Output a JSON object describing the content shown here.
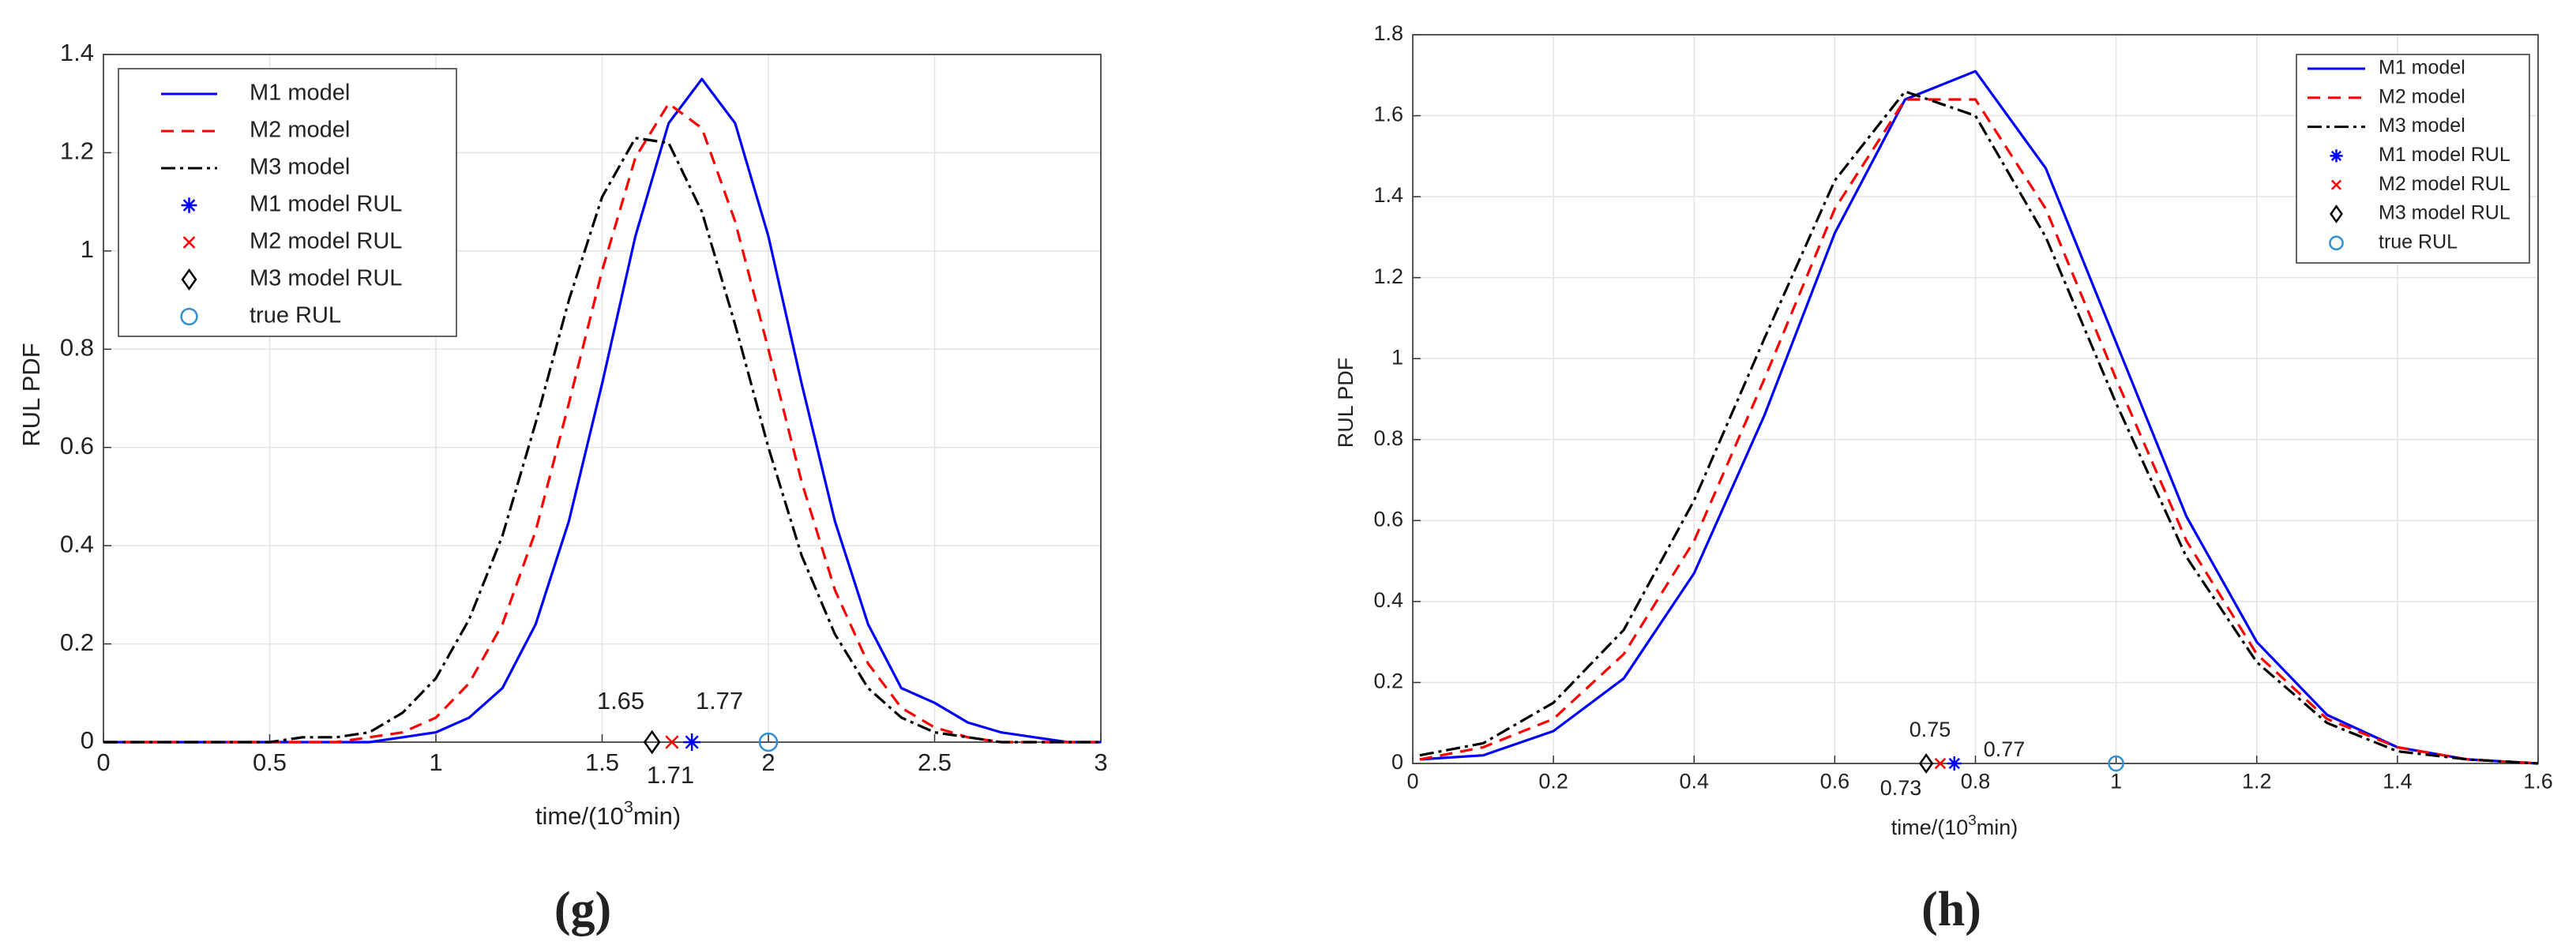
{
  "chart_data": [
    {
      "type": "line",
      "panel_label": "(g)",
      "y_label": "RUL PDF",
      "x_label_parts": [
        "time/(10",
        "3",
        "min)"
      ],
      "xlim": [
        0,
        3
      ],
      "ylim": [
        0,
        1.4
      ],
      "xticks": [
        0,
        0.5,
        1,
        1.5,
        2,
        2.5,
        3
      ],
      "yticks": [
        0,
        0.2,
        0.4,
        0.6,
        0.8,
        1,
        1.2,
        1.4
      ],
      "grid": true,
      "legend": "upper-left",
      "x": [
        0,
        0.1,
        0.2,
        0.3,
        0.4,
        0.5,
        0.6,
        0.7,
        0.8,
        0.9,
        1,
        1.1,
        1.2,
        1.3,
        1.4,
        1.5,
        1.6,
        1.7,
        1.8,
        1.9,
        2,
        2.1,
        2.2,
        2.3,
        2.4,
        2.5,
        2.6,
        2.7,
        2.8,
        2.9,
        3
      ],
      "series": [
        {
          "name": "M1 model",
          "color": "#0000ff",
          "style": "solid",
          "values": [
            0,
            0,
            0,
            0,
            0,
            0,
            0,
            0,
            0,
            0.01,
            0.02,
            0.05,
            0.11,
            0.24,
            0.45,
            0.73,
            1.03,
            1.26,
            1.35,
            1.26,
            1.03,
            0.73,
            0.45,
            0.24,
            0.11,
            0.08,
            0.04,
            0.02,
            0.01,
            0,
            0
          ]
        },
        {
          "name": "M2 model",
          "color": "#ff0000",
          "style": "dashed",
          "values": [
            0,
            0,
            0,
            0,
            0,
            0,
            0,
            0,
            0.01,
            0.02,
            0.05,
            0.12,
            0.24,
            0.43,
            0.69,
            0.96,
            1.19,
            1.3,
            1.25,
            1.06,
            0.8,
            0.53,
            0.31,
            0.16,
            0.07,
            0.03,
            0.01,
            0,
            0,
            0,
            0
          ]
        },
        {
          "name": "M3 model",
          "color": "#000000",
          "style": "dashdot",
          "values": [
            0,
            0,
            0,
            0,
            0,
            0,
            0.01,
            0.01,
            0.02,
            0.06,
            0.13,
            0.25,
            0.42,
            0.65,
            0.9,
            1.11,
            1.23,
            1.22,
            1.08,
            0.85,
            0.6,
            0.38,
            0.22,
            0.11,
            0.05,
            0.02,
            0.01,
            0,
            0,
            0,
            0
          ]
        },
        {
          "name": "M1 model RUL",
          "color": "#0000ff",
          "marker": "star",
          "x": [
            1.77
          ],
          "values": [
            0
          ]
        },
        {
          "name": "M2 model RUL",
          "color": "#ff0000",
          "marker": "cross",
          "x": [
            1.71
          ],
          "values": [
            0
          ]
        },
        {
          "name": "M3 model RUL",
          "color": "#000000",
          "marker": "diamond",
          "x": [
            1.65
          ],
          "values": [
            0
          ]
        },
        {
          "name": "true RUL",
          "color": "#2f8fd0",
          "marker": "circle",
          "x": [
            2
          ],
          "values": [
            0
          ]
        }
      ],
      "annotations": [
        "1.65",
        "1.77",
        "1.71"
      ]
    },
    {
      "type": "line",
      "panel_label": "(h)",
      "y_label": "RUL PDF",
      "x_label_parts": [
        "time/(10",
        "3",
        "min)"
      ],
      "xlim": [
        0,
        1.6
      ],
      "ylim": [
        0,
        1.8
      ],
      "xticks": [
        0,
        0.2,
        0.4,
        0.6,
        0.8,
        1,
        1.2,
        1.4,
        1.6
      ],
      "yticks": [
        0,
        0.2,
        0.4,
        0.6,
        0.8,
        1,
        1.2,
        1.4,
        1.6,
        1.8
      ],
      "grid": true,
      "legend": "upper-right",
      "x": [
        0.01,
        0.1,
        0.2,
        0.3,
        0.4,
        0.5,
        0.6,
        0.7,
        0.8,
        0.9,
        1,
        1.1,
        1.2,
        1.3,
        1.4,
        1.5,
        1.6
      ],
      "series": [
        {
          "name": "M1 model",
          "color": "#0000ff",
          "style": "solid",
          "values": [
            0.01,
            0.02,
            0.08,
            0.21,
            0.47,
            0.86,
            1.31,
            1.64,
            1.71,
            1.47,
            1.04,
            0.61,
            0.3,
            0.12,
            0.04,
            0.01,
            0
          ]
        },
        {
          "name": "M2 model",
          "color": "#ff0000",
          "style": "dashed",
          "values": [
            0.01,
            0.04,
            0.11,
            0.27,
            0.55,
            0.95,
            1.37,
            1.64,
            1.64,
            1.37,
            0.95,
            0.55,
            0.27,
            0.11,
            0.04,
            0.01,
            0
          ]
        },
        {
          "name": "M3 model",
          "color": "#000000",
          "style": "dashdot",
          "values": [
            0.02,
            0.05,
            0.15,
            0.33,
            0.65,
            1.05,
            1.44,
            1.66,
            1.6,
            1.3,
            0.89,
            0.51,
            0.25,
            0.1,
            0.03,
            0.01,
            0
          ]
        },
        {
          "name": "M1 model RUL",
          "color": "#0000ff",
          "marker": "star",
          "x": [
            0.77
          ],
          "values": [
            0
          ]
        },
        {
          "name": "M2 model RUL",
          "color": "#ff0000",
          "marker": "cross",
          "x": [
            0.75
          ],
          "values": [
            0
          ]
        },
        {
          "name": "M3 model RUL",
          "color": "#000000",
          "marker": "diamond",
          "x": [
            0.73
          ],
          "values": [
            0
          ]
        },
        {
          "name": "true RUL",
          "color": "#2f8fd0",
          "marker": "circle",
          "x": [
            1
          ],
          "values": [
            0
          ]
        }
      ],
      "annotations": [
        "0.75",
        "0.77",
        "0.73"
      ]
    }
  ]
}
